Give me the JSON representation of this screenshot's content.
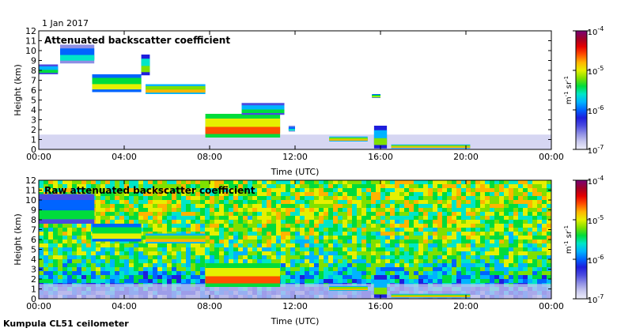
{
  "date_label": "1 Jan 2017",
  "footer": "Kumpula CL51 ceilometer",
  "colors": {
    "scale": [
      "#efeffa",
      "#c8c8ee",
      "#8e8ee4",
      "#4b4be0",
      "#1e1edc",
      "#0064ff",
      "#00b4ff",
      "#00e6c8",
      "#00dc3c",
      "#7fe000",
      "#e6f000",
      "#ffb400",
      "#ff5000",
      "#e60000",
      "#a00028",
      "#780078"
    ]
  },
  "chart_data": [
    {
      "type": "heatmap",
      "title": "Attenuated backscatter coefficient",
      "xlabel": "Time (UTC)",
      "ylabel": "Height (km)",
      "x_ticks": [
        "00:00",
        "04:00",
        "08:00",
        "12:00",
        "16:00",
        "20:00",
        "00:00"
      ],
      "y_ticks": [
        "0",
        "1",
        "2",
        "3",
        "4",
        "5",
        "6",
        "7",
        "8",
        "9",
        "10",
        "11",
        "12"
      ],
      "xlim_hours": [
        0,
        24
      ],
      "ylim_km": [
        0,
        12
      ],
      "colorbar": {
        "unit_label": "m-1 sr-1",
        "ticks": [
          {
            "base": "10",
            "exp": "-4"
          },
          {
            "base": "10",
            "exp": "-5"
          },
          {
            "base": "10",
            "exp": "-6"
          },
          {
            "base": "10",
            "exp": "-7"
          }
        ],
        "log_range": [
          -7,
          -4
        ]
      },
      "cloud_layers": [
        {
          "t": [
            0.0,
            0.9
          ],
          "z": [
            7.6,
            8.6
          ],
          "level": -5.4
        },
        {
          "t": [
            1.0,
            2.6
          ],
          "z": [
            8.7,
            10.6
          ],
          "level": -5.6
        },
        {
          "t": [
            2.5,
            4.8
          ],
          "z": [
            5.8,
            7.6
          ],
          "level": -5.0
        },
        {
          "t": [
            4.8,
            5.2
          ],
          "z": [
            7.5,
            9.6
          ],
          "level": -5.2
        },
        {
          "t": [
            5.0,
            7.8
          ],
          "z": [
            5.6,
            6.6
          ],
          "level": -4.8
        },
        {
          "t": [
            7.8,
            11.3
          ],
          "z": [
            1.2,
            3.6
          ],
          "level": -4.6
        },
        {
          "t": [
            9.5,
            11.5
          ],
          "z": [
            3.5,
            4.7
          ],
          "level": -5.4
        },
        {
          "t": [
            11.7,
            12.0
          ],
          "z": [
            1.8,
            2.4
          ],
          "level": -5.6
        },
        {
          "t": [
            13.6,
            15.4
          ],
          "z": [
            0.8,
            1.3
          ],
          "level": -4.8
        },
        {
          "t": [
            15.6,
            16.0
          ],
          "z": [
            5.2,
            5.6
          ],
          "level": -5.0
        },
        {
          "t": [
            15.7,
            16.3
          ],
          "z": [
            0.1,
            2.4
          ],
          "level": -5.3
        },
        {
          "t": [
            16.5,
            20.2
          ],
          "z": [
            0.1,
            0.5
          ],
          "level": -4.9
        }
      ],
      "boundary_layer": {
        "top_km": 1.5,
        "level": -6.8
      },
      "noise_background": false
    },
    {
      "type": "heatmap",
      "title": "Raw attenuated backscatter coefficient",
      "xlabel": "Time (UTC)",
      "ylabel": "Height (km)",
      "x_ticks": [
        "00:00",
        "04:00",
        "08:00",
        "12:00",
        "16:00",
        "20:00",
        "00:00"
      ],
      "y_ticks": [
        "0",
        "1",
        "2",
        "3",
        "4",
        "5",
        "6",
        "7",
        "8",
        "9",
        "10",
        "11",
        "12"
      ],
      "xlim_hours": [
        0,
        24
      ],
      "ylim_km": [
        0,
        12
      ],
      "colorbar": {
        "unit_label": "m-1 sr-1",
        "ticks": [
          {
            "base": "10",
            "exp": "-4"
          },
          {
            "base": "10",
            "exp": "-5"
          },
          {
            "base": "10",
            "exp": "-6"
          },
          {
            "base": "10",
            "exp": "-7"
          }
        ],
        "log_range": [
          -7,
          -4
        ]
      },
      "cloud_layers": [
        {
          "t": [
            0.0,
            2.6
          ],
          "z": [
            7.6,
            10.6
          ],
          "level": -5.5
        },
        {
          "t": [
            2.5,
            4.8
          ],
          "z": [
            5.8,
            7.6
          ],
          "level": -5.0
        },
        {
          "t": [
            5.0,
            7.8
          ],
          "z": [
            5.6,
            6.6
          ],
          "level": -4.8
        },
        {
          "t": [
            7.8,
            11.3
          ],
          "z": [
            1.2,
            3.6
          ],
          "level": -4.6
        },
        {
          "t": [
            13.6,
            15.4
          ],
          "z": [
            0.8,
            1.3
          ],
          "level": -4.8
        },
        {
          "t": [
            15.7,
            16.3
          ],
          "z": [
            0.1,
            2.4
          ],
          "level": -5.3
        },
        {
          "t": [
            16.5,
            20.2
          ],
          "z": [
            0.1,
            0.5
          ],
          "level": -4.9
        }
      ],
      "boundary_layer": {
        "top_km": 1.5,
        "level": -6.8
      },
      "noise_background": true
    }
  ]
}
